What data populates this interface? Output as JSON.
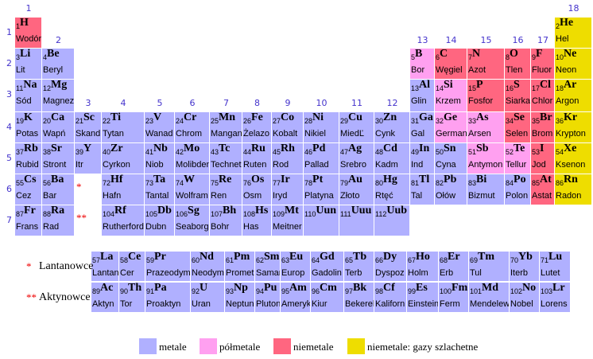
{
  "colors": {
    "metal": "#b0b0ff",
    "metalloid": "#ffa0f0",
    "nonmetal": "#ff6680",
    "noble": "#eedd00",
    "label": "#4433cc",
    "star": "#ee0000"
  },
  "groups": [
    "1",
    "2",
    "3",
    "4",
    "5",
    "6",
    "7",
    "8",
    "9",
    "10",
    "11",
    "12",
    "13",
    "14",
    "15",
    "16",
    "17",
    "18"
  ],
  "periods": [
    "1",
    "2",
    "3",
    "4",
    "5",
    "6",
    "7"
  ],
  "series": {
    "lanthanide_star": "*",
    "lanthanide_label": "Lantanowce",
    "actinide_star": "**",
    "actinide_label": "Aktynowce"
  },
  "main_stars": {
    "period6": "*",
    "period7": "**"
  },
  "elements": [
    {
      "n": "1",
      "s": "H",
      "name": "Wodór",
      "c": "nonmetal"
    },
    {
      "n": "2",
      "s": "He",
      "name": "Hel",
      "c": "noble"
    },
    {
      "n": "3",
      "s": "Li",
      "name": "Lit",
      "c": "metal"
    },
    {
      "n": "4",
      "s": "Be",
      "name": "Beryl",
      "c": "metal"
    },
    {
      "n": "5",
      "s": "B",
      "name": "Bor",
      "c": "metalloid"
    },
    {
      "n": "6",
      "s": "C",
      "name": "Węgiel",
      "c": "nonmetal"
    },
    {
      "n": "7",
      "s": "N",
      "name": "Azot",
      "c": "nonmetal"
    },
    {
      "n": "8",
      "s": "O",
      "name": "Tlen",
      "c": "nonmetal"
    },
    {
      "n": "9",
      "s": "F",
      "name": "Fluor",
      "c": "nonmetal"
    },
    {
      "n": "10",
      "s": "Ne",
      "name": "Neon",
      "c": "noble"
    },
    {
      "n": "11",
      "s": "Na",
      "name": "Sód",
      "c": "metal"
    },
    {
      "n": "12",
      "s": "Mg",
      "name": "Magnez",
      "c": "metal"
    },
    {
      "n": "13",
      "s": "Al",
      "name": "Glin",
      "c": "metal"
    },
    {
      "n": "14",
      "s": "Si",
      "name": "Krzem",
      "c": "metalloid"
    },
    {
      "n": "15",
      "s": "P",
      "name": "Fosfor",
      "c": "nonmetal"
    },
    {
      "n": "16",
      "s": "S",
      "name": "Siarka",
      "c": "nonmetal"
    },
    {
      "n": "17",
      "s": "Cl",
      "name": "Chlor",
      "c": "nonmetal"
    },
    {
      "n": "18",
      "s": "Ar",
      "name": "Argon",
      "c": "noble"
    },
    {
      "n": "19",
      "s": "K",
      "name": "Potas",
      "c": "metal"
    },
    {
      "n": "20",
      "s": "Ca",
      "name": "Wapń",
      "c": "metal"
    },
    {
      "n": "21",
      "s": "Sc",
      "name": "Skand",
      "c": "metal"
    },
    {
      "n": "22",
      "s": "Ti",
      "name": "Tytan",
      "c": "metal"
    },
    {
      "n": "23",
      "s": "V",
      "name": "Wanad",
      "c": "metal"
    },
    {
      "n": "24",
      "s": "Cr",
      "name": "Chrom",
      "c": "metal"
    },
    {
      "n": "25",
      "s": "Mn",
      "name": "Mangan",
      "c": "metal"
    },
    {
      "n": "26",
      "s": "Fe",
      "name": "Żelazo",
      "c": "metal"
    },
    {
      "n": "27",
      "s": "Co",
      "name": "Kobalt",
      "c": "metal"
    },
    {
      "n": "28",
      "s": "Ni",
      "name": "Nikiel",
      "c": "metal"
    },
    {
      "n": "29",
      "s": "Cu",
      "name": "MiedĽ",
      "c": "metal"
    },
    {
      "n": "30",
      "s": "Zn",
      "name": "Cynk",
      "c": "metal"
    },
    {
      "n": "31",
      "s": "Ga",
      "name": "Gal",
      "c": "metal"
    },
    {
      "n": "32",
      "s": "Ge",
      "name": "German",
      "c": "metalloid"
    },
    {
      "n": "33",
      "s": "As",
      "name": "Arsen",
      "c": "metalloid"
    },
    {
      "n": "34",
      "s": "Se",
      "name": "Selen",
      "c": "nonmetal"
    },
    {
      "n": "35",
      "s": "Br",
      "name": "Brom",
      "c": "nonmetal"
    },
    {
      "n": "36",
      "s": "Kr",
      "name": "Krypton",
      "c": "noble"
    },
    {
      "n": "37",
      "s": "Rb",
      "name": "Rubid",
      "c": "metal"
    },
    {
      "n": "38",
      "s": "Sr",
      "name": "Stront",
      "c": "metal"
    },
    {
      "n": "39",
      "s": "Y",
      "name": "Itr",
      "c": "metal"
    },
    {
      "n": "40",
      "s": "Zr",
      "name": "Cyrkon",
      "c": "metal"
    },
    {
      "n": "41",
      "s": "Nb",
      "name": "Niob",
      "c": "metal"
    },
    {
      "n": "42",
      "s": "Mo",
      "name": "Molibden",
      "c": "metal"
    },
    {
      "n": "43",
      "s": "Tc",
      "name": "Technet",
      "c": "metal"
    },
    {
      "n": "44",
      "s": "Ru",
      "name": "Ruten",
      "c": "metal"
    },
    {
      "n": "45",
      "s": "Rh",
      "name": "Rod",
      "c": "metal"
    },
    {
      "n": "46",
      "s": "Pd",
      "name": "Pallad",
      "c": "metal"
    },
    {
      "n": "47",
      "s": "Ag",
      "name": "Srebro",
      "c": "metal"
    },
    {
      "n": "48",
      "s": "Cd",
      "name": "Kadm",
      "c": "metal"
    },
    {
      "n": "49",
      "s": "In",
      "name": "Ind",
      "c": "metal"
    },
    {
      "n": "50",
      "s": "Sn",
      "name": "Cyna",
      "c": "metal"
    },
    {
      "n": "51",
      "s": "Sb",
      "name": "Antymon",
      "c": "metalloid"
    },
    {
      "n": "52",
      "s": "Te",
      "name": "Tellur",
      "c": "metalloid"
    },
    {
      "n": "53",
      "s": "I",
      "name": "Jod",
      "c": "nonmetal"
    },
    {
      "n": "54",
      "s": "Xe",
      "name": "Ksenon",
      "c": "noble"
    },
    {
      "n": "55",
      "s": "Cs",
      "name": "Cez",
      "c": "metal"
    },
    {
      "n": "56",
      "s": "Ba",
      "name": "Bar",
      "c": "metal"
    },
    {
      "n": "72",
      "s": "Hf",
      "name": "Hafn",
      "c": "metal"
    },
    {
      "n": "73",
      "s": "Ta",
      "name": "Tantal",
      "c": "metal"
    },
    {
      "n": "74",
      "s": "W",
      "name": "Wolfram",
      "c": "metal"
    },
    {
      "n": "75",
      "s": "Re",
      "name": "Ren",
      "c": "metal"
    },
    {
      "n": "76",
      "s": "Os",
      "name": "Osm",
      "c": "metal"
    },
    {
      "n": "77",
      "s": "Ir",
      "name": "Iryd",
      "c": "metal"
    },
    {
      "n": "78",
      "s": "Pt",
      "name": "Platyna",
      "c": "metal"
    },
    {
      "n": "79",
      "s": "Au",
      "name": "Złoto",
      "c": "metal"
    },
    {
      "n": "80",
      "s": "Hg",
      "name": "Rtęć",
      "c": "metal"
    },
    {
      "n": "81",
      "s": "Tl",
      "name": "Tal",
      "c": "metal"
    },
    {
      "n": "82",
      "s": "Pb",
      "name": "Ołów",
      "c": "metal"
    },
    {
      "n": "83",
      "s": "Bi",
      "name": "Bizmut",
      "c": "metal"
    },
    {
      "n": "84",
      "s": "Po",
      "name": "Polon",
      "c": "metal"
    },
    {
      "n": "85",
      "s": "At",
      "name": "Astat",
      "c": "nonmetal"
    },
    {
      "n": "86",
      "s": "Rn",
      "name": "Radon",
      "c": "noble"
    },
    {
      "n": "87",
      "s": "Fr",
      "name": "Frans",
      "c": "metal"
    },
    {
      "n": "88",
      "s": "Ra",
      "name": "Rad",
      "c": "metal"
    },
    {
      "n": "104",
      "s": "Rf",
      "name": "Rutherford",
      "c": "metal"
    },
    {
      "n": "105",
      "s": "Db",
      "name": "Dubn",
      "c": "metal"
    },
    {
      "n": "106",
      "s": "Sg",
      "name": "Seaborg",
      "c": "metal"
    },
    {
      "n": "107",
      "s": "Bh",
      "name": "Bohr",
      "c": "metal"
    },
    {
      "n": "108",
      "s": "Hs",
      "name": "Has",
      "c": "metal"
    },
    {
      "n": "109",
      "s": "Mt",
      "name": "Meitner",
      "c": "metal"
    },
    {
      "n": "110",
      "s": "Uun",
      "name": "",
      "c": "metal"
    },
    {
      "n": "111",
      "s": "Uuu",
      "name": "",
      "c": "metal"
    },
    {
      "n": "112",
      "s": "Uub",
      "name": "",
      "c": "metal"
    },
    {
      "n": "57",
      "s": "La",
      "name": "Lantan",
      "c": "metal"
    },
    {
      "n": "58",
      "s": "Ce",
      "name": "Cer",
      "c": "metal"
    },
    {
      "n": "59",
      "s": "Pr",
      "name": "Prazeodym",
      "c": "metal"
    },
    {
      "n": "60",
      "s": "Nd",
      "name": "Neodym",
      "c": "metal"
    },
    {
      "n": "61",
      "s": "Pm",
      "name": "Promet",
      "c": "metal"
    },
    {
      "n": "62",
      "s": "Sm",
      "name": "Samar",
      "c": "metal"
    },
    {
      "n": "63",
      "s": "Eu",
      "name": "Europ",
      "c": "metal"
    },
    {
      "n": "64",
      "s": "Gd",
      "name": "Gadolin",
      "c": "metal"
    },
    {
      "n": "65",
      "s": "Tb",
      "name": "Terb",
      "c": "metal"
    },
    {
      "n": "66",
      "s": "Dy",
      "name": "Dyspoz",
      "c": "metal"
    },
    {
      "n": "67",
      "s": "Ho",
      "name": "Holm",
      "c": "metal"
    },
    {
      "n": "68",
      "s": "Er",
      "name": "Erb",
      "c": "metal"
    },
    {
      "n": "69",
      "s": "Tm",
      "name": "Tul",
      "c": "metal"
    },
    {
      "n": "70",
      "s": "Yb",
      "name": "Iterb",
      "c": "metal"
    },
    {
      "n": "71",
      "s": "Lu",
      "name": "Lutet",
      "c": "metal"
    },
    {
      "n": "89",
      "s": "Ac",
      "name": "Aktyn",
      "c": "metal"
    },
    {
      "n": "90",
      "s": "Th",
      "name": "Tor",
      "c": "metal"
    },
    {
      "n": "91",
      "s": "Pa",
      "name": "Proaktyn",
      "c": "metal"
    },
    {
      "n": "92",
      "s": "U",
      "name": "Uran",
      "c": "metal"
    },
    {
      "n": "93",
      "s": "Np",
      "name": "Neptun",
      "c": "metal"
    },
    {
      "n": "94",
      "s": "Pu",
      "name": "Pluton",
      "c": "metal"
    },
    {
      "n": "95",
      "s": "Am",
      "name": "Ameryk",
      "c": "metal"
    },
    {
      "n": "96",
      "s": "Cm",
      "name": "Kiur",
      "c": "metal"
    },
    {
      "n": "97",
      "s": "Bk",
      "name": "Bekerel",
      "c": "metal"
    },
    {
      "n": "98",
      "s": "Cf",
      "name": "Kaliforn",
      "c": "metal"
    },
    {
      "n": "99",
      "s": "Es",
      "name": "Einstein",
      "c": "metal"
    },
    {
      "n": "100",
      "s": "Fm",
      "name": "Ferm",
      "c": "metal"
    },
    {
      "n": "101",
      "s": "Md",
      "name": "Mendelew",
      "c": "metal"
    },
    {
      "n": "102",
      "s": "No",
      "name": "Nobel",
      "c": "metal"
    },
    {
      "n": "103",
      "s": "Lr",
      "name": "Lorens",
      "c": "metal"
    }
  ],
  "legend": [
    {
      "label": "metale",
      "c": "metal"
    },
    {
      "label": "półmetale",
      "c": "metalloid"
    },
    {
      "label": "niemetale",
      "c": "nonmetal"
    },
    {
      "label": "niemetale: gazy szlachetne",
      "c": "noble"
    }
  ]
}
